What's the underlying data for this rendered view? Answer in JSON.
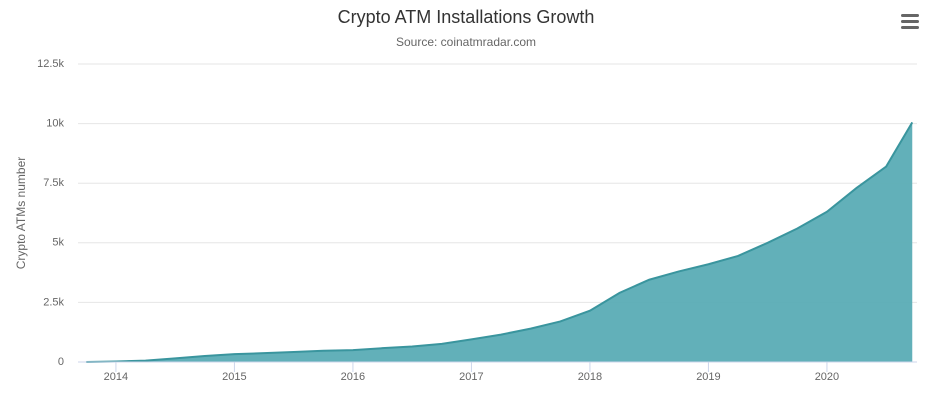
{
  "chart_data": {
    "type": "area",
    "title": "Crypto ATM Installations Growth",
    "subtitle": "Source: coinatmradar.com",
    "y_label": "Crypto ATMs number",
    "x": [
      2013.75,
      2014.0,
      2014.25,
      2014.5,
      2014.75,
      2015.0,
      2015.25,
      2015.5,
      2015.75,
      2016.0,
      2016.25,
      2016.5,
      2016.75,
      2017.0,
      2017.25,
      2017.5,
      2017.75,
      2018.0,
      2018.25,
      2018.5,
      2018.75,
      2019.0,
      2019.25,
      2019.5,
      2019.75,
      2020.0,
      2020.25,
      2020.5,
      2020.72
    ],
    "values": [
      2,
      20,
      60,
      150,
      250,
      330,
      370,
      420,
      470,
      500,
      580,
      650,
      760,
      950,
      1150,
      1400,
      1700,
      2150,
      2900,
      3450,
      3800,
      4100,
      4450,
      5000,
      5600,
      6300,
      7300,
      8200,
      10050
    ],
    "color": "#5aacb5",
    "line_color": "#3a959e",
    "xlim": [
      2013.68,
      2020.76
    ],
    "xticks": [
      2014,
      2015,
      2016,
      2017,
      2018,
      2019,
      2020
    ],
    "ylim": [
      0,
      12500
    ],
    "yticks": [
      0,
      {
        "value": 2500,
        "label": "2.5k"
      },
      {
        "value": 5000,
        "label": "5k"
      },
      {
        "value": 7500,
        "label": "7.5k"
      },
      {
        "value": 10000,
        "label": "10k"
      },
      {
        "value": 12500,
        "label": "12.5k"
      }
    ],
    "grid": true
  }
}
